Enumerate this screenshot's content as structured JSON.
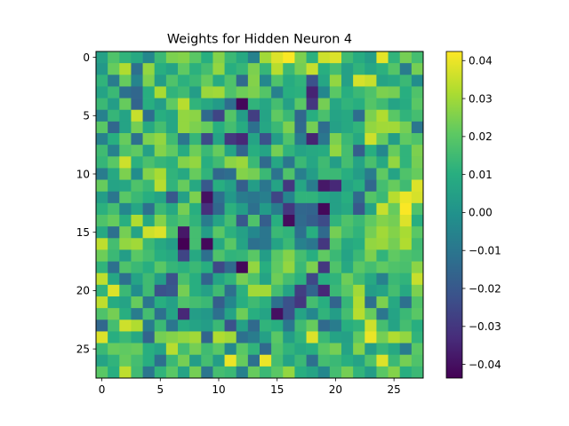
{
  "chart_data": {
    "type": "heatmap",
    "title": "Weights for Hidden Neuron 4",
    "xlabel": "",
    "ylabel": "",
    "rows": 28,
    "cols": 28,
    "xlim": [
      -0.5,
      27.5
    ],
    "ylim": [
      27.5,
      -0.5
    ],
    "x_ticks": [
      0,
      5,
      10,
      15,
      20,
      25
    ],
    "y_ticks": [
      0,
      5,
      10,
      15,
      20,
      25
    ],
    "colormap": "viridis",
    "value_range": [
      -0.0436,
      0.0424
    ],
    "colorbar_ticks": [
      0.04,
      0.03,
      0.02,
      0.01,
      0.0,
      -0.01,
      -0.02,
      -0.03,
      -0.04
    ],
    "colorbar_tick_labels": [
      "0.04",
      "0.03",
      "0.02",
      "0.01",
      "0.00",
      "−0.01",
      "−0.02",
      "−0.03",
      "−0.04"
    ],
    "values": [
      [
        0.005,
        0.018,
        0.012,
        0.008,
        -0.004,
        0.014,
        0.025,
        0.026,
        0.02,
        0.01,
        0.026,
        0.014,
        0.008,
        -0.006,
        0.03,
        0.038,
        0.042,
        0.025,
        0.011,
        0.036,
        0.038,
        0.015,
        0.009,
        0.004,
        0.039,
        0.012,
        0.024,
        0.016
      ],
      [
        0.002,
        0.022,
        0.032,
        -0.012,
        0.028,
        0.01,
        0.006,
        0.021,
        0.011,
        0.016,
        0.028,
        0.01,
        0.013,
        0.025,
        0.013,
        0.033,
        0.014,
        0.024,
        0.035,
        0.01,
        0.016,
        0.005,
        0.012,
        0.007,
        0.011,
        0.019,
        -0.008,
        0.024
      ],
      [
        0.012,
        -0.008,
        0.022,
        -0.005,
        0.025,
        0.004,
        0.018,
        0.011,
        0.014,
        0.022,
        0.009,
        0.018,
        -0.014,
        0.026,
        -0.004,
        0.018,
        0.009,
        0.012,
        -0.022,
        0.007,
        0.028,
        0.005,
        0.037,
        0.035,
        0.006,
        0.008,
        0.014,
        -0.002
      ],
      [
        0.006,
        0.014,
        -0.012,
        -0.015,
        0.01,
        0.031,
        0.012,
        0.015,
        0.004,
        0.029,
        0.03,
        0.018,
        0.023,
        0.025,
        0.019,
        -0.006,
        0.01,
        0.011,
        -0.035,
        -0.004,
        0.02,
        0.01,
        0.014,
        0.018,
        0.025,
        0.024,
        0.01,
        0.018
      ],
      [
        0.014,
        0.004,
        0.022,
        -0.016,
        0.01,
        0.004,
        0.021,
        0.033,
        0.012,
        0.008,
        0.003,
        -0.013,
        -0.042,
        0.012,
        0.007,
        0.016,
        0.005,
        0.02,
        -0.03,
        0.024,
        0.007,
        0.012,
        0.01,
        0.019,
        0.015,
        0.006,
        0.009,
        0.02
      ],
      [
        -0.006,
        0.013,
        0.006,
        0.035,
        -0.013,
        0.01,
        0.007,
        0.028,
        0.027,
        -0.014,
        -0.026,
        0.019,
        0.004,
        -0.028,
        0.006,
        0.021,
        0.014,
        -0.015,
        0.01,
        0.017,
        0.006,
        0.008,
        -0.013,
        0.025,
        0.032,
        0.02,
        0.012,
        0.016
      ],
      [
        0.02,
        -0.015,
        0.006,
        0.024,
        0.008,
        0.016,
        0.007,
        0.028,
        0.025,
        0.022,
        0.01,
        0.016,
        0.009,
        -0.012,
        0.007,
        0.014,
        0.025,
        -0.014,
        0.024,
        -0.013,
        0.005,
        0.008,
        0.012,
        0.028,
        0.03,
        0.03,
        0.024,
        -0.01
      ],
      [
        -0.006,
        0.01,
        0.022,
        -0.012,
        0.025,
        0.028,
        0.015,
        -0.01,
        0.013,
        -0.024,
        0.006,
        -0.03,
        -0.034,
        0.006,
        -0.022,
        0.004,
        0.018,
        -0.008,
        -0.035,
        -0.01,
        0.025,
        0.014,
        0.008,
        0.036,
        0.022,
        0.004,
        0.021,
        0.018
      ],
      [
        0.015,
        -0.006,
        0.018,
        0.021,
        0.005,
        0.026,
        0.021,
        0.009,
        0.023,
        0.014,
        0.022,
        0.006,
        -0.016,
        0.01,
        0.006,
        0.024,
        0.012,
        0.006,
        0.008,
        0.009,
        0.028,
        0.016,
        -0.018,
        0.01,
        -0.004,
        0.022,
        0.012,
        0.025
      ],
      [
        0.013,
        0.02,
        0.036,
        0.011,
        0.017,
        0.013,
        0.011,
        0.026,
        0.028,
        0.01,
        0.015,
        0.027,
        0.029,
        0.014,
        -0.014,
        0.007,
        -0.01,
        0.014,
        0.007,
        0.015,
        0.004,
        0.016,
        0.006,
        0.017,
        0.008,
        0.028,
        0.012,
        0.024
      ],
      [
        -0.008,
        0.008,
        0.025,
        -0.002,
        0.026,
        0.031,
        0.012,
        0.008,
        0.022,
        0.012,
        -0.015,
        -0.013,
        0.026,
        0.024,
        0.014,
        -0.011,
        0.018,
        -0.007,
        0.004,
        0.014,
        0.014,
        0.01,
        0.004,
        -0.008,
        0.021,
        0.006,
        0.018,
        0.022
      ],
      [
        0.022,
        0.006,
        0.007,
        0.018,
        0.014,
        0.033,
        0.012,
        0.022,
        0.008,
        -0.02,
        0.01,
        0.005,
        -0.018,
        0.004,
        -0.01,
        0.006,
        -0.03,
        0.007,
        -0.008,
        -0.038,
        -0.034,
        0.006,
        0.01,
        -0.015,
        0.016,
        0.022,
        0.015,
        0.038
      ],
      [
        0.004,
        -0.01,
        0.02,
        0.014,
        0.01,
        0.006,
        -0.02,
        0.005,
        0.025,
        -0.04,
        -0.012,
        0.002,
        -0.008,
        -0.01,
        -0.007,
        -0.026,
        -0.005,
        0.012,
        0.012,
        0.007,
        0.005,
        0.01,
        -0.014,
        0.019,
        0.014,
        0.033,
        0.04,
        0.037
      ],
      [
        0.011,
        0.016,
        -0.004,
        0.007,
        -0.012,
        0.014,
        0.008,
        0.024,
        0.01,
        -0.032,
        -0.015,
        0.011,
        0.004,
        -0.012,
        0.003,
        -0.008,
        -0.03,
        -0.015,
        -0.016,
        -0.042,
        0.005,
        0.008,
        -0.02,
        0.006,
        0.035,
        0.022,
        0.042,
        0.018
      ],
      [
        0.018,
        0.022,
        0.01,
        0.032,
        0.008,
        0.026,
        0.014,
        0.018,
        0.012,
        -0.008,
        0.006,
        0.016,
        -0.02,
        0.018,
        -0.018,
        0.01,
        -0.041,
        -0.014,
        -0.018,
        -0.024,
        0.012,
        0.018,
        0.014,
        0.021,
        0.026,
        0.024,
        0.038,
        0.01
      ],
      [
        0.008,
        -0.012,
        0.024,
        0.006,
        0.036,
        0.038,
        0.018,
        -0.038,
        0.016,
        0.004,
        0.02,
        0.011,
        0.005,
        -0.004,
        -0.01,
        0.014,
        0.012,
        -0.012,
        0.01,
        -0.014,
        0.024,
        0.016,
        0.012,
        0.024,
        0.03,
        0.026,
        0.031,
        0.02
      ],
      [
        0.034,
        0.016,
        0.028,
        0.03,
        0.014,
        0.008,
        0.004,
        -0.044,
        0.016,
        -0.042,
        0.008,
        0.02,
        0.006,
        -0.012,
        -0.01,
        0.006,
        0.014,
        -0.006,
        -0.01,
        -0.03,
        0.018,
        0.008,
        0.01,
        0.028,
        0.029,
        0.024,
        0.032,
        0.015
      ],
      [
        0.023,
        0.014,
        0.004,
        0.02,
        0.016,
        0.01,
        0.008,
        -0.026,
        0.008,
        -0.012,
        0.018,
        0.012,
        0.013,
        0.02,
        0.004,
        0.02,
        0.026,
        0.016,
        0.01,
        0.021,
        0.014,
        0.006,
        0.014,
        0.025,
        0.012,
        0.021,
        0.018,
        0.016
      ],
      [
        0.012,
        -0.012,
        0.018,
        0.014,
        0.01,
        0.02,
        0.013,
        0.011,
        0.014,
        0.01,
        -0.025,
        -0.014,
        -0.042,
        0.028,
        0.01,
        0.021,
        0.028,
        0.014,
        0.025,
        -0.03,
        0.018,
        0.008,
        0.02,
        0.016,
        0.021,
        0.018,
        0.017,
        0.027
      ],
      [
        0.034,
        0.007,
        -0.012,
        0.006,
        0.015,
        0.004,
        -0.022,
        0.017,
        0.01,
        -0.016,
        0.006,
        0.012,
        0.024,
        0.018,
        0.006,
        0.023,
        0.016,
        0.011,
        -0.025,
        0.01,
        0.012,
        0.023,
        0.015,
        0.008,
        -0.006,
        0.014,
        0.012,
        0.035
      ],
      [
        0.012,
        0.038,
        0.014,
        -0.002,
        0.015,
        -0.022,
        -0.02,
        0.024,
        0.01,
        0.005,
        0.015,
        -0.012,
        0.011,
        0.03,
        0.03,
        0.016,
        0.006,
        -0.028,
        -0.016,
        -0.034,
        0.014,
        0.02,
        0.03,
        0.004,
        0.006,
        0.016,
        0.008,
        0.025
      ],
      [
        0.034,
        0.009,
        0.006,
        0.022,
        -0.01,
        0.01,
        0.005,
        0.018,
        0.016,
        0.014,
        -0.018,
        -0.004,
        0.01,
        0.015,
        0.011,
        -0.012,
        -0.022,
        -0.03,
        0.016,
        0.01,
        -0.016,
        0.013,
        0.032,
        -0.012,
        0.025,
        0.008,
        -0.012,
        0.018
      ],
      [
        0.018,
        0.024,
        0.01,
        -0.008,
        0.016,
        -0.012,
        0.006,
        -0.034,
        0.004,
        0.002,
        -0.012,
        0.006,
        0.023,
        0.01,
        0.006,
        -0.04,
        -0.022,
        0.006,
        -0.004,
        0.012,
        0.004,
        0.016,
        0.033,
        0.022,
        -0.01,
        0.006,
        0.014,
        0.02
      ],
      [
        -0.015,
        0.016,
        0.036,
        0.032,
        -0.008,
        0.014,
        -0.01,
        0.009,
        0.006,
        0.004,
        0.014,
        -0.022,
        0.005,
        -0.014,
        0.012,
        0.01,
        -0.01,
        0.015,
        0.022,
        -0.014,
        -0.008,
        0.01,
        0.012,
        0.036,
        0.016,
        0.006,
        0.016,
        0.01
      ],
      [
        0.038,
        0.01,
        0.014,
        0.008,
        -0.016,
        0.024,
        0.026,
        0.028,
        0.03,
        -0.016,
        0.032,
        0.03,
        -0.012,
        -0.008,
        0.005,
        0.02,
        0.004,
        0.012,
        0.038,
        0.014,
        0.006,
        0.005,
        0.021,
        0.04,
        0.024,
        0.032,
        0.028,
        0.012
      ],
      [
        0.014,
        0.022,
        0.021,
        0.022,
        0.01,
        0.006,
        0.033,
        0.016,
        0.024,
        0.015,
        0.02,
        -0.004,
        0.02,
        0.012,
        -0.014,
        0.018,
        0.012,
        0.008,
        0.01,
        0.02,
        0.024,
        0.006,
        0.026,
        0.004,
        0.013,
        0.008,
        -0.008,
        0.02
      ],
      [
        0.006,
        0.012,
        0.022,
        0.016,
        0.01,
        -0.012,
        0.014,
        0.024,
        0.004,
        0.016,
        0.004,
        0.04,
        0.022,
        -0.012,
        0.04,
        0.016,
        0.006,
        0.014,
        -0.012,
        0.016,
        0.014,
        0.01,
        0.006,
        0.018,
        0.038,
        0.014,
        0.024,
        0.018
      ],
      [
        0.02,
        0.01,
        0.034,
        0.015,
        -0.01,
        0.012,
        0.02,
        0.006,
        0.024,
        -0.01,
        0.016,
        0.014,
        -0.006,
        0.022,
        0.014,
        0.02,
        0.028,
        0.01,
        0.006,
        -0.004,
        0.016,
        0.024,
        0.012,
        0.004,
        0.02,
        0.026,
        0.01,
        0.014
      ]
    ]
  }
}
